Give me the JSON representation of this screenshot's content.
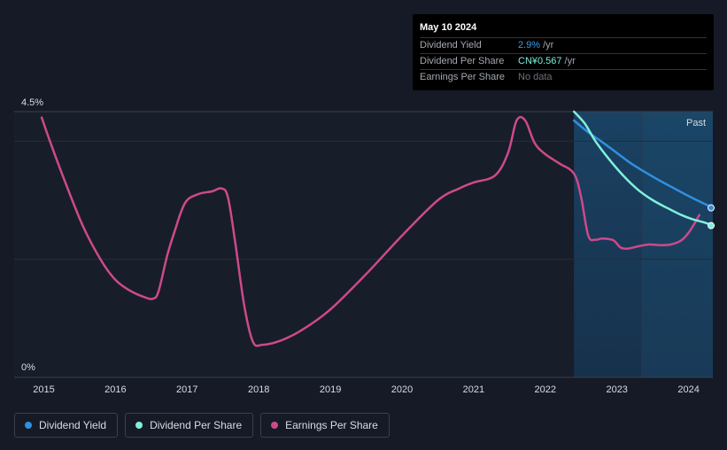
{
  "chart_data": {
    "type": "line",
    "x_ticks": [
      "2015",
      "2016",
      "2017",
      "2018",
      "2019",
      "2020",
      "2021",
      "2022",
      "2023",
      "2024"
    ],
    "y_ticks": [
      "4.5%",
      "0%"
    ],
    "ylim": [
      0,
      4.5
    ],
    "past_label": "Past",
    "forecast_shading_start": 2022.4,
    "past_region_start": 2023.35,
    "series": [
      {
        "name": "Earnings Per Share",
        "color": "#cc4a8a",
        "points": [
          [
            2014.97,
            4.4
          ],
          [
            2015.1,
            3.95
          ],
          [
            2015.3,
            3.3
          ],
          [
            2015.55,
            2.55
          ],
          [
            2015.8,
            1.98
          ],
          [
            2016.0,
            1.65
          ],
          [
            2016.2,
            1.47
          ],
          [
            2016.4,
            1.36
          ],
          [
            2016.52,
            1.33
          ],
          [
            2016.6,
            1.45
          ],
          [
            2016.72,
            2.05
          ],
          [
            2016.82,
            2.45
          ],
          [
            2016.97,
            2.95
          ],
          [
            2017.15,
            3.1
          ],
          [
            2017.35,
            3.15
          ],
          [
            2017.48,
            3.2
          ],
          [
            2017.57,
            3.05
          ],
          [
            2017.67,
            2.3
          ],
          [
            2017.8,
            1.2
          ],
          [
            2017.92,
            0.6
          ],
          [
            2018.05,
            0.55
          ],
          [
            2018.3,
            0.62
          ],
          [
            2018.6,
            0.8
          ],
          [
            2019.0,
            1.15
          ],
          [
            2019.5,
            1.75
          ],
          [
            2020.0,
            2.4
          ],
          [
            2020.5,
            3.0
          ],
          [
            2020.8,
            3.2
          ],
          [
            2021.0,
            3.3
          ],
          [
            2021.3,
            3.42
          ],
          [
            2021.48,
            3.8
          ],
          [
            2021.6,
            4.35
          ],
          [
            2021.72,
            4.35
          ],
          [
            2021.85,
            3.97
          ],
          [
            2022.0,
            3.78
          ],
          [
            2022.2,
            3.62
          ],
          [
            2022.4,
            3.45
          ],
          [
            2022.5,
            3.05
          ],
          [
            2022.6,
            2.4
          ],
          [
            2022.7,
            2.33
          ],
          [
            2022.8,
            2.35
          ],
          [
            2022.95,
            2.32
          ],
          [
            2023.05,
            2.2
          ],
          [
            2023.15,
            2.18
          ],
          [
            2023.3,
            2.22
          ],
          [
            2023.45,
            2.25
          ],
          [
            2023.6,
            2.24
          ],
          [
            2023.75,
            2.25
          ],
          [
            2023.9,
            2.32
          ],
          [
            2024.0,
            2.45
          ],
          [
            2024.08,
            2.6
          ],
          [
            2024.15,
            2.75
          ]
        ]
      },
      {
        "name": "Dividend Yield",
        "color": "#2f8fe0",
        "points": [
          [
            2022.4,
            4.35
          ],
          [
            2022.6,
            4.15
          ],
          [
            2022.8,
            3.98
          ],
          [
            2023.0,
            3.8
          ],
          [
            2023.2,
            3.62
          ],
          [
            2023.4,
            3.47
          ],
          [
            2023.6,
            3.33
          ],
          [
            2023.8,
            3.2
          ],
          [
            2024.0,
            3.07
          ],
          [
            2024.2,
            2.95
          ],
          [
            2024.35,
            2.87
          ]
        ]
      },
      {
        "name": "Dividend Per Share",
        "color": "#7ef0dc",
        "points": [
          [
            2022.4,
            4.5
          ],
          [
            2022.55,
            4.3
          ],
          [
            2022.7,
            4.0
          ],
          [
            2022.9,
            3.68
          ],
          [
            2023.1,
            3.4
          ],
          [
            2023.3,
            3.17
          ],
          [
            2023.5,
            3.0
          ],
          [
            2023.7,
            2.87
          ],
          [
            2023.9,
            2.75
          ],
          [
            2024.05,
            2.68
          ],
          [
            2024.2,
            2.63
          ],
          [
            2024.35,
            2.57
          ]
        ]
      }
    ],
    "legend": [
      "Dividend Yield",
      "Dividend Per Share",
      "Earnings Per Share"
    ]
  },
  "tooltip": {
    "date": "May 10 2024",
    "rows": [
      {
        "label": "Dividend Yield",
        "value": "2.9%",
        "unit": "/yr"
      },
      {
        "label": "Dividend Per Share",
        "value": "CN¥0.567",
        "unit": "/yr"
      },
      {
        "label": "Earnings Per Share",
        "value": "No data",
        "unit": ""
      }
    ]
  },
  "legend_colors": {
    "dividend_yield": "#2f8fe0",
    "dividend_per_share": "#7ef0dc",
    "earnings_per_share": "#cc4a8a"
  }
}
